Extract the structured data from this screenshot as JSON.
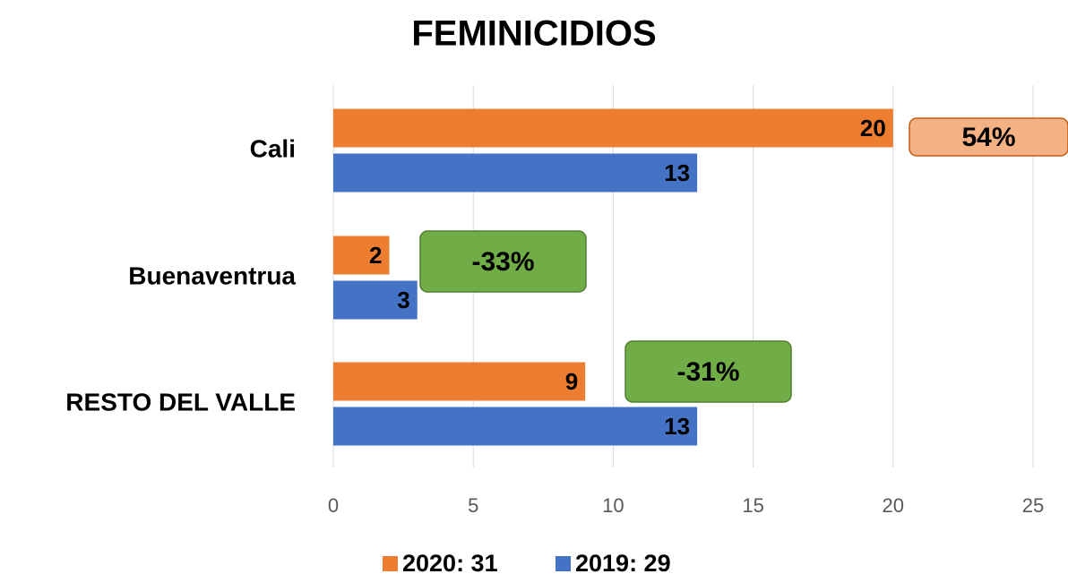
{
  "chart_data": {
    "type": "bar",
    "orientation": "horizontal",
    "title": "FEMINICIDIOS",
    "categories": [
      "Cali",
      "Buenaventrua",
      "RESTO DEL VALLE"
    ],
    "series": [
      {
        "name": "2020: 31",
        "color": "#ed7d31",
        "values": [
          20,
          2,
          9
        ]
      },
      {
        "name": "2019: 29",
        "color": "#4472c4",
        "values": [
          13,
          3,
          13
        ]
      }
    ],
    "xlim": [
      0,
      25
    ],
    "xticks": [
      0,
      5,
      10,
      15,
      20,
      25
    ],
    "grid": true,
    "legend": "bottom",
    "annotations": [
      {
        "text": "54%",
        "color": "#f4b183"
      },
      {
        "text": "-33%",
        "color": "#70ad47"
      },
      {
        "text": "-31%",
        "color": "#70ad47"
      }
    ]
  }
}
